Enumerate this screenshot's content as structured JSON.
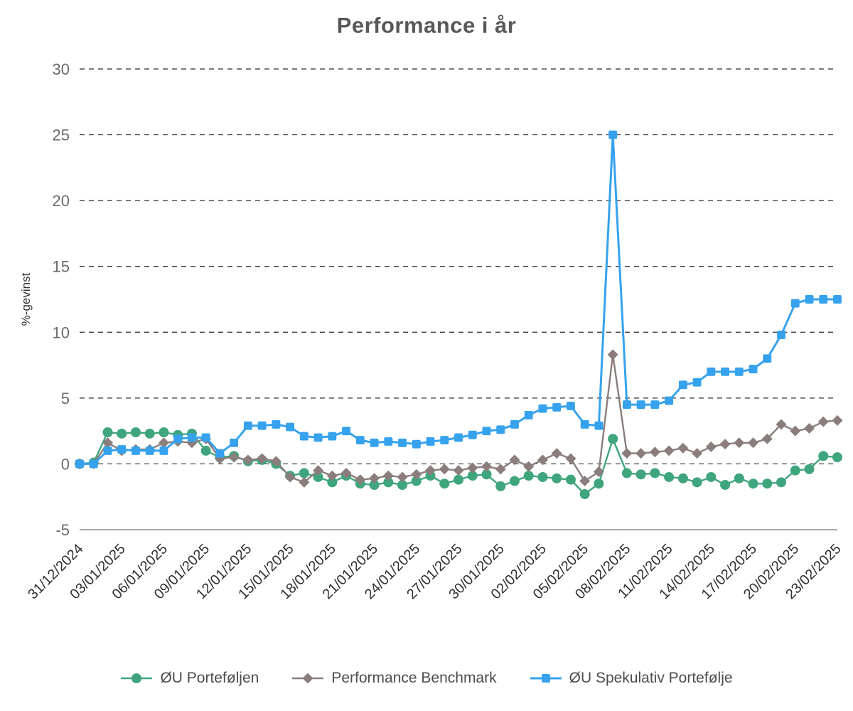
{
  "title": "Performance i år",
  "y_axis_label": "%-gevinst",
  "legend": [
    {
      "label": "ØU Porteføljen",
      "color": "#3FA57D",
      "marker": "circle"
    },
    {
      "label": "Performance Benchmark",
      "color": "#8A7D7C",
      "marker": "diamond"
    },
    {
      "label": "ØU Spekulativ Portefølje",
      "color": "#36A2EE",
      "marker": "square"
    }
  ],
  "chart_data": {
    "type": "line",
    "title": "Performance i år",
    "xlabel": "",
    "ylabel": "%-gevinst",
    "ylim": [
      -5,
      30
    ],
    "y_ticks": [
      30,
      25,
      20,
      15,
      10,
      5,
      0,
      -5
    ],
    "grid": "dashed-horizontal",
    "legend_position": "bottom",
    "x_tick_labels": [
      "31/12/2024",
      "03/01/2025",
      "06/01/2025",
      "09/01/2025",
      "12/01/2025",
      "15/01/2025",
      "18/01/2025",
      "21/01/2025",
      "24/01/2025",
      "27/01/2025",
      "30/01/2025",
      "02/02/2025",
      "05/02/2025",
      "08/02/2025",
      "11/02/2025",
      "14/02/2025",
      "17/02/2025",
      "20/02/2025",
      "23/02/2025"
    ],
    "x": [
      "31/12/2024",
      "01/01/2025",
      "02/01/2025",
      "03/01/2025",
      "04/01/2025",
      "05/01/2025",
      "06/01/2025",
      "07/01/2025",
      "08/01/2025",
      "09/01/2025",
      "10/01/2025",
      "11/01/2025",
      "12/01/2025",
      "13/01/2025",
      "14/01/2025",
      "15/01/2025",
      "16/01/2025",
      "17/01/2025",
      "18/01/2025",
      "19/01/2025",
      "20/01/2025",
      "21/01/2025",
      "22/01/2025",
      "23/01/2025",
      "24/01/2025",
      "25/01/2025",
      "26/01/2025",
      "27/01/2025",
      "28/01/2025",
      "29/01/2025",
      "30/01/2025",
      "31/01/2025",
      "01/02/2025",
      "02/02/2025",
      "03/02/2025",
      "04/02/2025",
      "05/02/2025",
      "06/02/2025",
      "07/02/2025",
      "08/02/2025",
      "09/02/2025",
      "10/02/2025",
      "11/02/2025",
      "12/02/2025",
      "13/02/2025",
      "14/02/2025",
      "15/02/2025",
      "16/02/2025",
      "17/02/2025",
      "18/02/2025",
      "19/02/2025",
      "20/02/2025",
      "21/02/2025",
      "22/02/2025",
      "23/02/2025"
    ],
    "series": [
      {
        "name": "ØU Porteføljen",
        "color": "#3FA57D",
        "marker": "circle",
        "values": [
          0.0,
          0.1,
          2.4,
          2.3,
          2.4,
          2.3,
          2.4,
          2.2,
          2.3,
          1.0,
          0.5,
          0.6,
          0.2,
          0.3,
          0.0,
          -0.9,
          -0.7,
          -1.0,
          -1.4,
          -0.9,
          -1.5,
          -1.6,
          -1.4,
          -1.6,
          -1.3,
          -0.9,
          -1.5,
          -1.2,
          -0.9,
          -0.8,
          -1.7,
          -1.3,
          -0.9,
          -1.0,
          -1.1,
          -1.2,
          -2.3,
          -1.5,
          1.9,
          -0.7,
          -0.8,
          -0.7,
          -1.0,
          -1.1,
          -1.4,
          -1.0,
          -1.6,
          -1.1,
          -1.5,
          -1.5,
          -1.4,
          -0.5,
          -0.4,
          0.6,
          0.5
        ]
      },
      {
        "name": "Performance Benchmark",
        "color": "#8A7D7C",
        "marker": "diamond",
        "values": [
          0.0,
          0.0,
          1.6,
          1.0,
          1.1,
          1.1,
          1.6,
          1.7,
          1.6,
          1.9,
          0.4,
          0.5,
          0.3,
          0.4,
          0.2,
          -1.0,
          -1.4,
          -0.5,
          -0.9,
          -0.7,
          -1.2,
          -1.1,
          -0.9,
          -1.0,
          -0.8,
          -0.5,
          -0.4,
          -0.5,
          -0.3,
          -0.2,
          -0.4,
          0.3,
          -0.2,
          0.3,
          0.8,
          0.4,
          -1.3,
          -0.6,
          8.3,
          0.8,
          0.8,
          0.9,
          1.0,
          1.2,
          0.8,
          1.3,
          1.5,
          1.6,
          1.6,
          1.9,
          3.0,
          2.5,
          2.7,
          3.2,
          3.3
        ]
      },
      {
        "name": "ØU Spekulativ Portefølje",
        "color": "#36A2EE",
        "marker": "square",
        "values": [
          0.0,
          0.0,
          1.0,
          1.1,
          1.0,
          1.0,
          1.0,
          1.9,
          2.0,
          2.0,
          0.8,
          1.6,
          2.9,
          2.9,
          3.0,
          2.8,
          2.1,
          2.0,
          2.1,
          2.5,
          1.8,
          1.6,
          1.7,
          1.6,
          1.5,
          1.7,
          1.8,
          2.0,
          2.2,
          2.5,
          2.6,
          3.0,
          3.7,
          4.2,
          4.3,
          4.4,
          3.0,
          2.9,
          25.0,
          4.5,
          4.5,
          4.5,
          4.8,
          6.0,
          6.2,
          7.0,
          7.0,
          7.0,
          7.2,
          8.0,
          9.8,
          12.2,
          12.5,
          12.5,
          12.5
        ]
      }
    ]
  }
}
